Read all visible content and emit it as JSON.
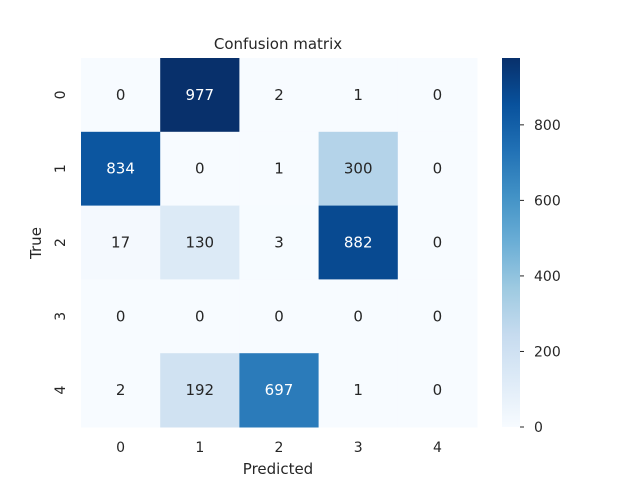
{
  "chart_data": {
    "type": "heatmap",
    "title": "Confusion matrix",
    "xlabel": "Predicted",
    "ylabel": "True",
    "x_categories": [
      "0",
      "1",
      "2",
      "3",
      "4"
    ],
    "y_categories": [
      "0",
      "1",
      "2",
      "3",
      "4"
    ],
    "values": [
      [
        0,
        977,
        2,
        1,
        0
      ],
      [
        834,
        0,
        1,
        300,
        0
      ],
      [
        17,
        130,
        3,
        882,
        0
      ],
      [
        0,
        0,
        0,
        0,
        0
      ],
      [
        2,
        192,
        697,
        1,
        0
      ]
    ],
    "vmin": 0,
    "vmax": 977,
    "colormap": "Blues",
    "colorbar": {
      "ticks": [
        0,
        200,
        400,
        600,
        800
      ],
      "tick_labels": [
        "0",
        "200",
        "400",
        "600",
        "800"
      ]
    },
    "grid": false,
    "colors": {
      "low": "#f7fbff",
      "high": "#08306b",
      "text_dark": "#262626",
      "text_light": "#ffffff"
    }
  }
}
